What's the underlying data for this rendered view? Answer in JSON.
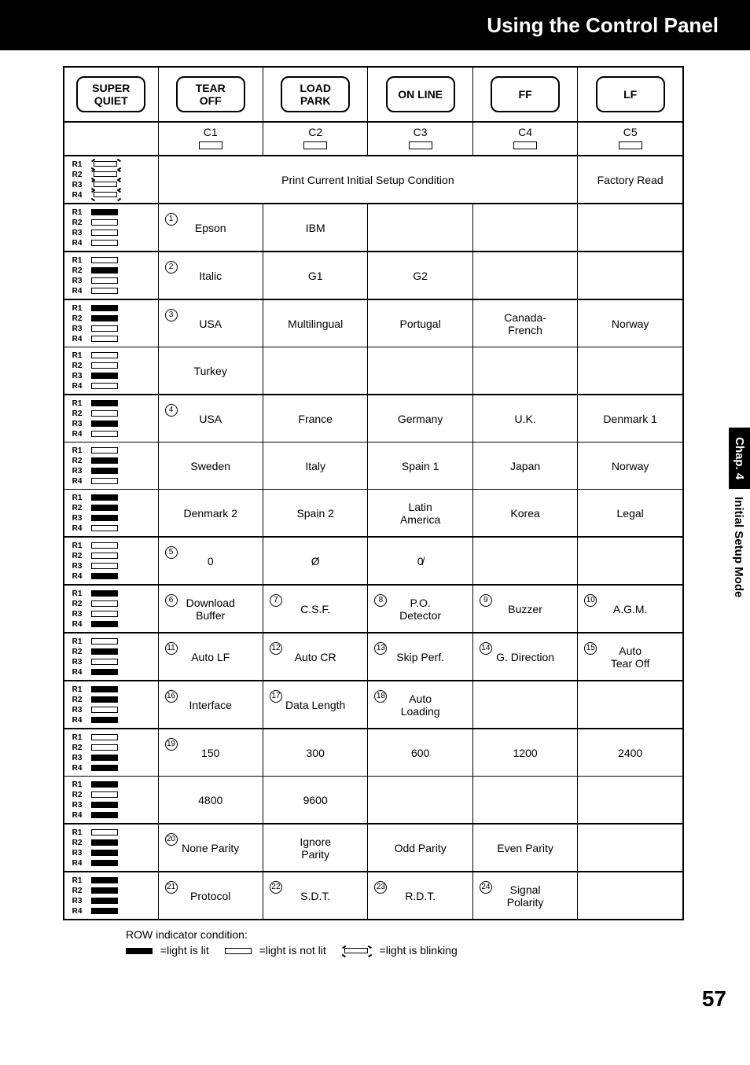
{
  "title": "Using the Control Panel",
  "side_tab_black": "Chap. 4",
  "side_tab_white": "Initial Setup Mode",
  "page_number": "57",
  "buttons": [
    "SUPER\nQUIET",
    "TEAR\nOFF",
    "LOAD\nPARK",
    "ON LINE",
    "FF",
    "LF"
  ],
  "columns": [
    "C1",
    "C2",
    "C3",
    "C4",
    "C5"
  ],
  "row_labels": [
    "R1",
    "R2",
    "R3",
    "R4"
  ],
  "led_states": {
    "0": [
      "blink",
      "blink",
      "blink",
      "blink"
    ],
    "1": [
      "on",
      "off",
      "off",
      "off"
    ],
    "2": [
      "off",
      "on",
      "off",
      "off"
    ],
    "3": [
      "on",
      "on",
      "off",
      "off"
    ],
    "4": [
      "off",
      "off",
      "on",
      "off"
    ],
    "5": [
      "on",
      "off",
      "on",
      "off"
    ],
    "6": [
      "off",
      "on",
      "on",
      "off"
    ],
    "7": [
      "on",
      "on",
      "on",
      "off"
    ],
    "8": [
      "off",
      "off",
      "off",
      "on"
    ],
    "9": [
      "on",
      "off",
      "off",
      "on"
    ],
    "10": [
      "off",
      "on",
      "off",
      "on"
    ],
    "11": [
      "on",
      "on",
      "off",
      "on"
    ],
    "12": [
      "off",
      "off",
      "on",
      "on"
    ],
    "13": [
      "on",
      "off",
      "on",
      "on"
    ],
    "14": [
      "off",
      "on",
      "on",
      "on"
    ],
    "15": [
      "on",
      "on",
      "on",
      "on"
    ]
  },
  "spanner_row": {
    "main": "Print Current Initial Setup Condition",
    "last": "Factory Read"
  },
  "rows": [
    {
      "led": "1",
      "cells": [
        {
          "n": "1",
          "t": "Epson"
        },
        {
          "t": "IBM"
        },
        {
          "t": ""
        },
        {
          "t": ""
        },
        {
          "t": ""
        }
      ],
      "thickTop": true,
      "thickBot": true
    },
    {
      "led": "2",
      "cells": [
        {
          "n": "2",
          "t": "Italic"
        },
        {
          "t": "G1"
        },
        {
          "t": "G2"
        },
        {
          "t": ""
        },
        {
          "t": ""
        }
      ],
      "thickBot": true
    },
    {
      "led": "3",
      "cells": [
        {
          "n": "3",
          "t": "USA"
        },
        {
          "t": "Multilingual"
        },
        {
          "t": "Portugal"
        },
        {
          "t": "Canada-\nFrench"
        },
        {
          "t": "Norway"
        }
      ]
    },
    {
      "led": "4",
      "cells": [
        {
          "t": "Turkey"
        },
        {
          "t": ""
        },
        {
          "t": ""
        },
        {
          "t": ""
        },
        {
          "t": ""
        }
      ],
      "thickBot": true
    },
    {
      "led": "5",
      "cells": [
        {
          "n": "4",
          "t": "USA"
        },
        {
          "t": "France"
        },
        {
          "t": "Germany"
        },
        {
          "t": "U.K."
        },
        {
          "t": "Denmark 1"
        }
      ]
    },
    {
      "led": "6",
      "cells": [
        {
          "t": "Sweden"
        },
        {
          "t": "Italy"
        },
        {
          "t": "Spain 1"
        },
        {
          "t": "Japan"
        },
        {
          "t": "Norway"
        }
      ]
    },
    {
      "led": "7",
      "cells": [
        {
          "t": "Denmark 2"
        },
        {
          "t": "Spain 2"
        },
        {
          "t": "Latin\nAmerica"
        },
        {
          "t": "Korea"
        },
        {
          "t": "Legal"
        }
      ],
      "thickBot": true
    },
    {
      "led": "8",
      "cells": [
        {
          "n": "5",
          "t": "0"
        },
        {
          "t": "Ø"
        },
        {
          "t": "0̸"
        },
        {
          "t": ""
        },
        {
          "t": ""
        }
      ],
      "thickBot": true
    },
    {
      "led": "9",
      "cells": [
        {
          "n": "6",
          "t": "Download\nBuffer"
        },
        {
          "n": "7",
          "t": "C.S.F."
        },
        {
          "n": "8",
          "t": "P.O.\nDetector"
        },
        {
          "n": "9",
          "t": "Buzzer"
        },
        {
          "n": "10",
          "t": "A.G.M."
        }
      ],
      "thickBot": true
    },
    {
      "led": "10",
      "cells": [
        {
          "n": "11",
          "t": "Auto LF"
        },
        {
          "n": "12",
          "t": "Auto CR"
        },
        {
          "n": "13",
          "t": "Skip Perf."
        },
        {
          "n": "14",
          "t": "G. Direction"
        },
        {
          "n": "15",
          "t": "Auto\nTear Off"
        }
      ],
      "thickBot": true
    },
    {
      "led": "11",
      "cells": [
        {
          "n": "16",
          "t": "Interface"
        },
        {
          "n": "17",
          "t": "Data Length"
        },
        {
          "n": "18",
          "t": "Auto\nLoading"
        },
        {
          "t": ""
        },
        {
          "t": ""
        }
      ],
      "thickBot": true
    },
    {
      "led": "12",
      "cells": [
        {
          "n": "19",
          "t": "150"
        },
        {
          "t": "300"
        },
        {
          "t": "600"
        },
        {
          "t": "1200"
        },
        {
          "t": "2400"
        }
      ]
    },
    {
      "led": "13",
      "cells": [
        {
          "t": "4800"
        },
        {
          "t": "9600"
        },
        {
          "t": ""
        },
        {
          "t": ""
        },
        {
          "t": ""
        }
      ],
      "thickBot": true
    },
    {
      "led": "14",
      "cells": [
        {
          "n": "20",
          "t": "None Parity"
        },
        {
          "t": "Ignore\nParity"
        },
        {
          "t": "Odd Parity"
        },
        {
          "t": "Even Parity"
        },
        {
          "t": ""
        }
      ],
      "thickBot": true
    },
    {
      "led": "15",
      "cells": [
        {
          "n": "21",
          "t": "Protocol"
        },
        {
          "n": "22",
          "t": "S.D.T."
        },
        {
          "n": "23",
          "t": "R.D.T."
        },
        {
          "n": "24",
          "t": "Signal\nPolarity"
        },
        {
          "t": ""
        }
      ]
    }
  ],
  "legend": {
    "title": "ROW indicator condition:",
    "lit": "=light is lit",
    "notlit": "=light is not lit",
    "blink": "=light is blinking"
  }
}
